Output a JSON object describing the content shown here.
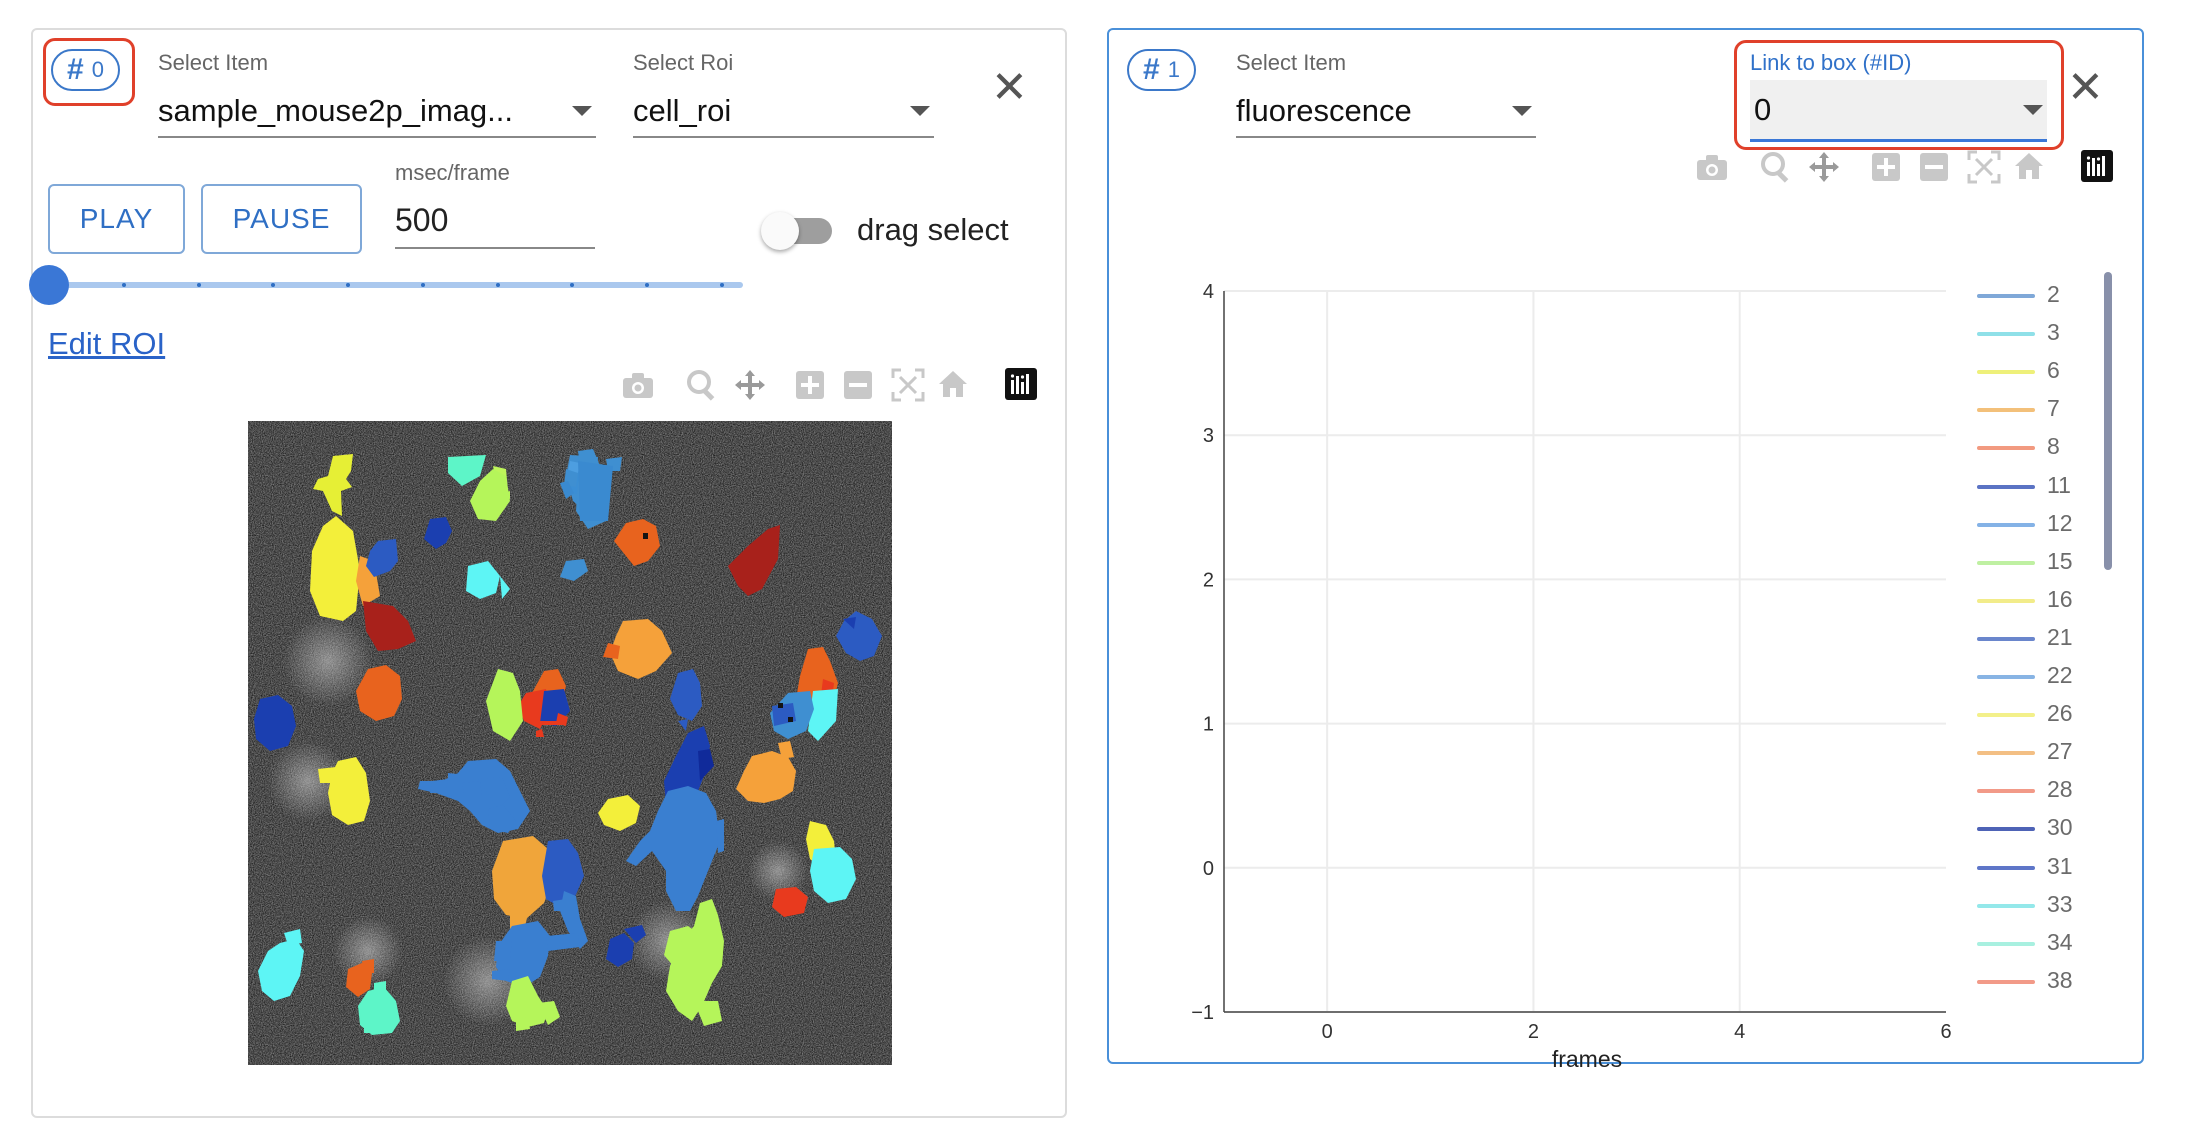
{
  "panel0": {
    "id_label": "0",
    "select_item_label": "Select Item",
    "select_item_value": "sample_mouse2p_imag...",
    "select_roi_label": "Select Roi",
    "select_roi_value": "cell_roi",
    "play_label": "PLAY",
    "pause_label": "PAUSE",
    "msec_label": "msec/frame",
    "msec_value": "500",
    "drag_select_label": "drag select",
    "drag_select_on": false,
    "slider_position": 0,
    "edit_roi_label": "Edit ROI"
  },
  "panel1": {
    "id_label": "1",
    "select_item_label": "Select Item",
    "select_item_value": "fluorescence",
    "link_label": "Link to box (#ID)",
    "link_value": "0"
  },
  "toolbar_icons": [
    "camera-icon",
    "zoom-icon",
    "pan-icon",
    "zoom-in-icon",
    "zoom-out-icon",
    "autoscale-icon",
    "reset-axes-icon",
    "plotly-logo-icon"
  ],
  "chart_data": {
    "type": "line",
    "xlabel": "frames",
    "ylabel": "",
    "xlim": [
      -1,
      6
    ],
    "ylim": [
      -1,
      4
    ],
    "x_ticks": [
      "0",
      "2",
      "4",
      "6"
    ],
    "y_ticks": [
      "−1",
      "0",
      "1",
      "2",
      "3",
      "4"
    ],
    "grid": true,
    "legend_placement": "right",
    "series": [
      {
        "name": "2",
        "color": "#7fa8d8",
        "values": []
      },
      {
        "name": "3",
        "color": "#8fe0e8",
        "values": []
      },
      {
        "name": "6",
        "color": "#eef07a",
        "values": []
      },
      {
        "name": "7",
        "color": "#f3c07a",
        "values": []
      },
      {
        "name": "8",
        "color": "#f29a80",
        "values": []
      },
      {
        "name": "11",
        "color": "#5b73c4",
        "values": []
      },
      {
        "name": "12",
        "color": "#84b2e6",
        "values": []
      },
      {
        "name": "15",
        "color": "#bff0a2",
        "values": []
      },
      {
        "name": "16",
        "color": "#f2ec8a",
        "values": []
      },
      {
        "name": "21",
        "color": "#6a86cc",
        "values": []
      },
      {
        "name": "22",
        "color": "#88b4e4",
        "values": []
      },
      {
        "name": "26",
        "color": "#f3f08a",
        "values": []
      },
      {
        "name": "27",
        "color": "#f3bf84",
        "values": []
      },
      {
        "name": "28",
        "color": "#f29a88",
        "values": []
      },
      {
        "name": "30",
        "color": "#4e63b6",
        "values": []
      },
      {
        "name": "31",
        "color": "#5e76c8",
        "values": []
      },
      {
        "name": "33",
        "color": "#94e8ea",
        "values": []
      },
      {
        "name": "34",
        "color": "#a8f0e0",
        "values": []
      },
      {
        "name": "38",
        "color": "#f29a88",
        "values": []
      }
    ]
  }
}
